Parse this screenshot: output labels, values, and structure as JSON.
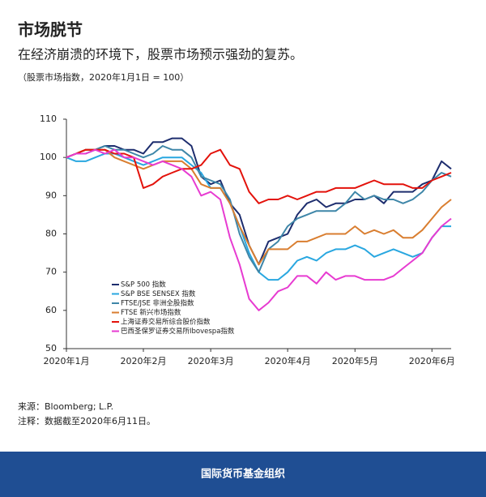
{
  "chart_data": {
    "type": "line",
    "title": "市场脱节",
    "subtitle": "在经济崩溃的环境下，股票市场预示强劲的复苏。",
    "unit_note": "（股票市场指数，2020年1月1日 = 100）",
    "source": "来源：Bloomberg; L.P.",
    "note": "注释：数据截至2020年6月11日。",
    "footer": "国际货币基金组织",
    "categories": [
      "2020年1月",
      null,
      null,
      null,
      null,
      null,
      null,
      null,
      "2020年2月",
      null,
      null,
      null,
      null,
      null,
      null,
      "2020年3月",
      null,
      null,
      null,
      null,
      null,
      null,
      null,
      "2020年4月",
      null,
      null,
      null,
      null,
      null,
      null,
      "2020年5月",
      null,
      null,
      null,
      null,
      null,
      null,
      null,
      "2020年6月",
      null,
      null
    ],
    "ylim": [
      50,
      110
    ],
    "yticks": [
      50,
      60,
      70,
      80,
      90,
      100,
      110
    ],
    "grid": false,
    "legend": "lower-left",
    "series": [
      {
        "name": "S&P 500 指数",
        "color": "#1d2d6e",
        "values": [
          100,
          101,
          102,
          102,
          103,
          103,
          102,
          102,
          101,
          104,
          104,
          105,
          105,
          103,
          95,
          93,
          94,
          88,
          85,
          77,
          72,
          78,
          79,
          80,
          85,
          88,
          89,
          87,
          88,
          88,
          89,
          89,
          90,
          88,
          91,
          91,
          91,
          93,
          94,
          99,
          97
        ]
      },
      {
        "name": "S&P BSE SENSEX 指数",
        "color": "#29a7e0",
        "values": [
          100,
          99,
          99,
          100,
          101,
          101,
          100,
          99,
          98,
          99,
          100,
          100,
          100,
          98,
          96,
          92,
          92,
          88,
          82,
          75,
          70,
          68,
          68,
          70,
          73,
          74,
          73,
          75,
          76,
          76,
          77,
          76,
          74,
          75,
          76,
          75,
          74,
          75,
          79,
          82,
          82
        ]
      },
      {
        "name": "FTSE/JSE 非洲全股指数",
        "color": "#3e86a8",
        "values": [
          100,
          101,
          101,
          102,
          103,
          102,
          102,
          101,
          100,
          101,
          103,
          102,
          102,
          100,
          95,
          94,
          93,
          89,
          80,
          74,
          70,
          76,
          78,
          82,
          84,
          85,
          86,
          86,
          86,
          88,
          91,
          89,
          90,
          89,
          89,
          88,
          89,
          91,
          94,
          96,
          95
        ]
      },
      {
        "name": "FTSE 新兴市场指数",
        "color": "#d97e30",
        "values": [
          100,
          101,
          102,
          102,
          102,
          100,
          99,
          98,
          97,
          98,
          99,
          99,
          99,
          97,
          93,
          92,
          92,
          88,
          82,
          77,
          72,
          76,
          76,
          76,
          78,
          78,
          79,
          80,
          80,
          80,
          82,
          80,
          81,
          80,
          81,
          79,
          79,
          81,
          84,
          87,
          89
        ]
      },
      {
        "name": "上海证券交易所综合股价指数",
        "color": "#e3120b",
        "values": [
          100,
          101,
          102,
          102,
          102,
          101,
          101,
          100,
          92,
          93,
          95,
          96,
          97,
          97,
          98,
          101,
          102,
          98,
          97,
          91,
          88,
          89,
          89,
          90,
          89,
          90,
          91,
          91,
          92,
          92,
          92,
          93,
          94,
          93,
          93,
          93,
          92,
          92,
          94,
          95,
          96
        ]
      },
      {
        "name": "巴西圣保罗证券交易所Ibovespa指数",
        "color": "#e73bd1",
        "values": [
          100,
          101,
          101,
          102,
          101,
          102,
          100,
          100,
          99,
          98,
          99,
          98,
          97,
          95,
          90,
          91,
          89,
          79,
          72,
          63,
          60,
          62,
          65,
          66,
          69,
          69,
          67,
          70,
          68,
          69,
          69,
          68,
          68,
          68,
          69,
          71,
          73,
          75,
          79,
          82,
          84
        ]
      }
    ]
  }
}
